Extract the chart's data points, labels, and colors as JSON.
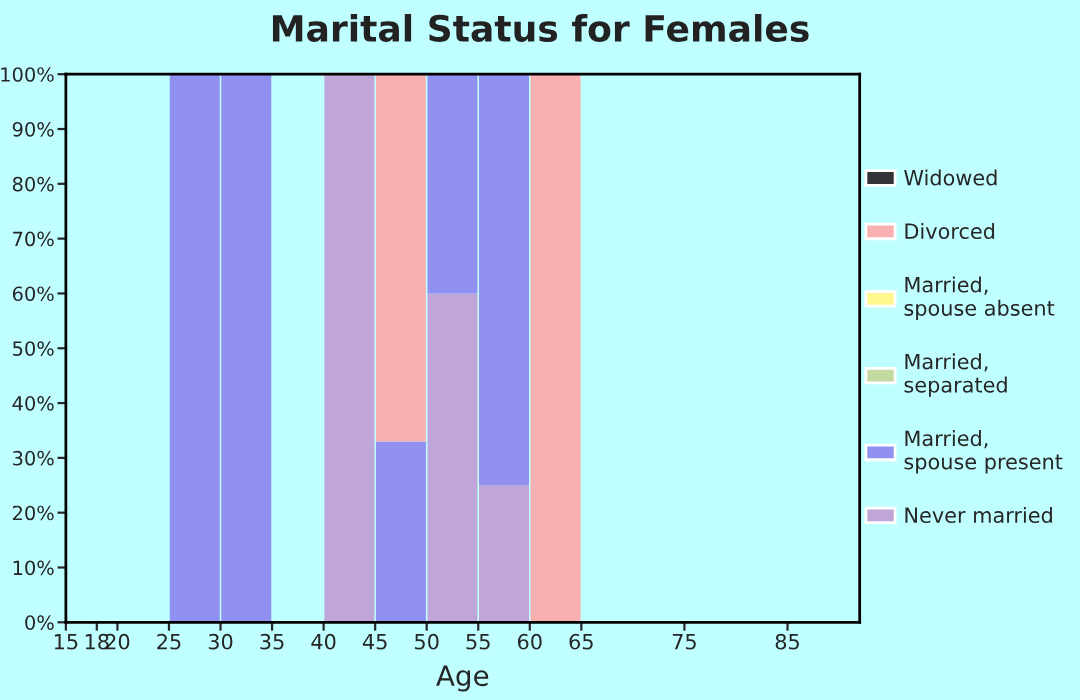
{
  "chart_data": {
    "type": "bar",
    "title": "Marital Status for Females",
    "xlabel": "Age",
    "x": [
      27.5,
      32.5,
      37.5,
      42.5,
      47.5,
      52.5,
      57.5,
      62.5
    ],
    "stacked": true,
    "series": [
      {
        "name": "Never married",
        "color": "#c0a6d8",
        "values": [
          0,
          0,
          0,
          100,
          0,
          60,
          25,
          0
        ]
      },
      {
        "name": "Married,\nspouse present",
        "color": "#9090f0",
        "values": [
          100,
          100,
          0,
          0,
          33,
          40,
          75,
          0
        ]
      },
      {
        "name": "Married,\nseparated",
        "color": "#c2d9a2",
        "values": [
          0,
          0,
          0,
          0,
          0,
          0,
          0,
          0
        ]
      },
      {
        "name": "Married,\nspouse absent",
        "color": "#fff88f",
        "values": [
          0,
          0,
          0,
          0,
          0,
          0,
          0,
          0
        ]
      },
      {
        "name": "Divorced",
        "color": "#f8b0b0",
        "values": [
          0,
          0,
          0,
          0,
          67,
          0,
          0,
          100
        ]
      },
      {
        "name": "Widowed",
        "color": "#33333a",
        "values": [
          0,
          0,
          0,
          0,
          0,
          0,
          0,
          0
        ]
      }
    ],
    "xlim": [
      15,
      92
    ],
    "xticks": [
      15,
      18,
      20,
      25,
      30,
      35,
      40,
      45,
      50,
      55,
      60,
      65,
      75,
      85
    ],
    "ylim": [
      0,
      100
    ],
    "yticks": [
      {
        "value": 0,
        "label": "0%"
      },
      {
        "value": 10,
        "label": "10%"
      },
      {
        "value": 20,
        "label": "20%"
      },
      {
        "value": 30,
        "label": "30%"
      },
      {
        "value": 40,
        "label": "40%"
      },
      {
        "value": 50,
        "label": "50%"
      },
      {
        "value": 60,
        "label": "60%"
      },
      {
        "value": 70,
        "label": "70%"
      },
      {
        "value": 80,
        "label": "80%"
      },
      {
        "value": 90,
        "label": "90%"
      },
      {
        "value": 100,
        "label": "100%"
      }
    ],
    "grid": false,
    "legend": "right"
  }
}
